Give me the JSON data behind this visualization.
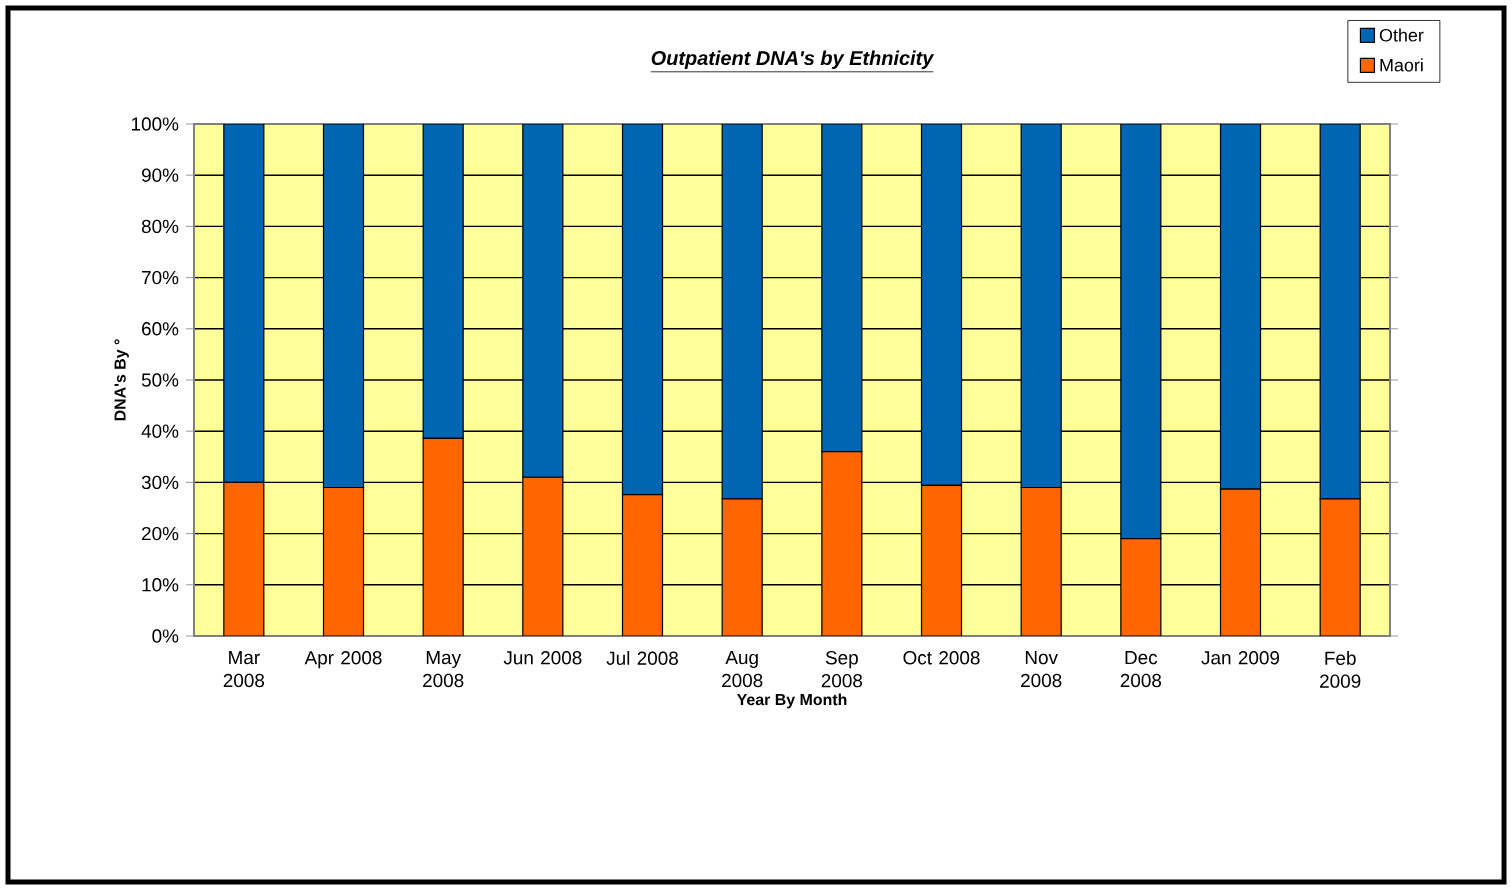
{
  "chart_data": {
    "type": "bar",
    "stacked": true,
    "title": "Outpatient DNA's by Ethnicity",
    "xlabel": "Year By Month",
    "ylabel": "DNA's By °",
    "categories": [
      "Mar 2008",
      "Apr 2008",
      "May 2008",
      "Jun 2008",
      "Jul 2008",
      "Aug 2008",
      "Sep 2008",
      "Oct 2008",
      "Nov 2008",
      "Dec 2008",
      "Jan 2009",
      "Feb 2009"
    ],
    "series": [
      {
        "name": "Maori",
        "color": "#ff6600",
        "values": [
          30,
          29,
          38.6,
          31,
          27.6,
          26.8,
          36,
          29.4,
          29,
          19,
          28.7,
          26.8
        ]
      },
      {
        "name": "Other",
        "color": "#0066b3",
        "values": [
          70,
          71,
          61.4,
          69,
          72.4,
          73.2,
          64,
          70.6,
          71,
          81,
          71.3,
          73.2
        ]
      }
    ],
    "ylim": [
      0,
      100
    ],
    "yticks": [
      {
        "value": 0,
        "label": "0%"
      },
      {
        "value": 10,
        "label": "10%"
      },
      {
        "value": 20,
        "label": "20%"
      },
      {
        "value": 30,
        "label": "30%"
      },
      {
        "value": 40,
        "label": "40%"
      },
      {
        "value": 50,
        "label": "50%"
      },
      {
        "value": 60,
        "label": "60%"
      },
      {
        "value": 70,
        "label": "70%"
      },
      {
        "value": 80,
        "label": "80%"
      },
      {
        "value": 90,
        "label": "90%"
      },
      {
        "value": 100,
        "label": "100%"
      }
    ],
    "grid": "y",
    "legend": "top right"
  }
}
